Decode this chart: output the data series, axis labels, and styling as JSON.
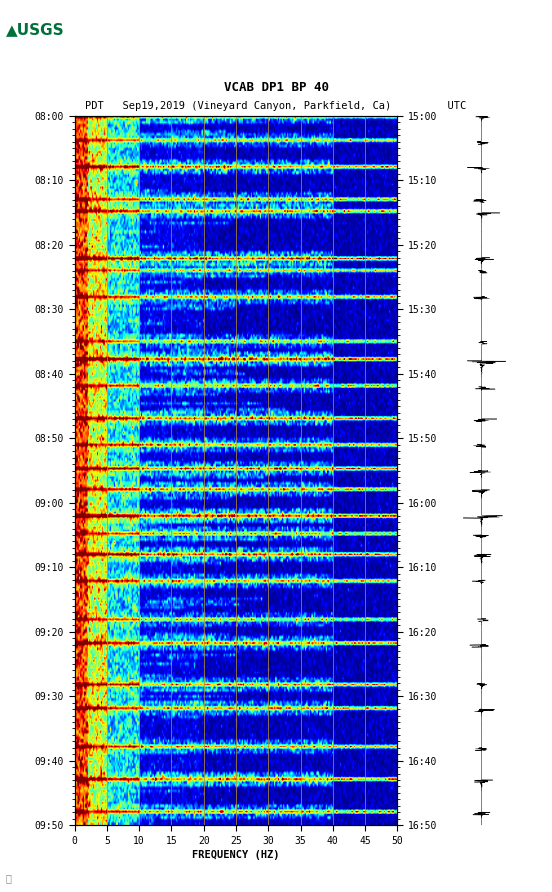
{
  "title_line1": "VCAB DP1 BP 40",
  "title_line2_pdt": "PDT   Sep19,2019 (Vineyard Canyon, Parkfield, Ca)         UTC",
  "xlabel": "FREQUENCY (HZ)",
  "freq_min": 0,
  "freq_max": 50,
  "left_time_labels": [
    "08:00",
    "08:10",
    "08:20",
    "08:30",
    "08:40",
    "08:50",
    "09:00",
    "09:10",
    "09:20",
    "09:30",
    "09:40",
    "09:50"
  ],
  "right_time_labels": [
    "15:00",
    "15:10",
    "15:20",
    "15:30",
    "15:40",
    "15:50",
    "16:00",
    "16:10",
    "16:20",
    "16:30",
    "16:40",
    "16:50"
  ],
  "freq_ticks": [
    0,
    5,
    10,
    15,
    20,
    25,
    30,
    35,
    40,
    45,
    50
  ],
  "background_color": "#ffffff",
  "spectrogram_colormap": "jet",
  "grid_color": "#b8922a",
  "grid_alpha": 0.75,
  "fig_width": 5.52,
  "fig_height": 8.92,
  "usgs_color": "#00713a",
  "n_time": 240,
  "n_freq": 250
}
